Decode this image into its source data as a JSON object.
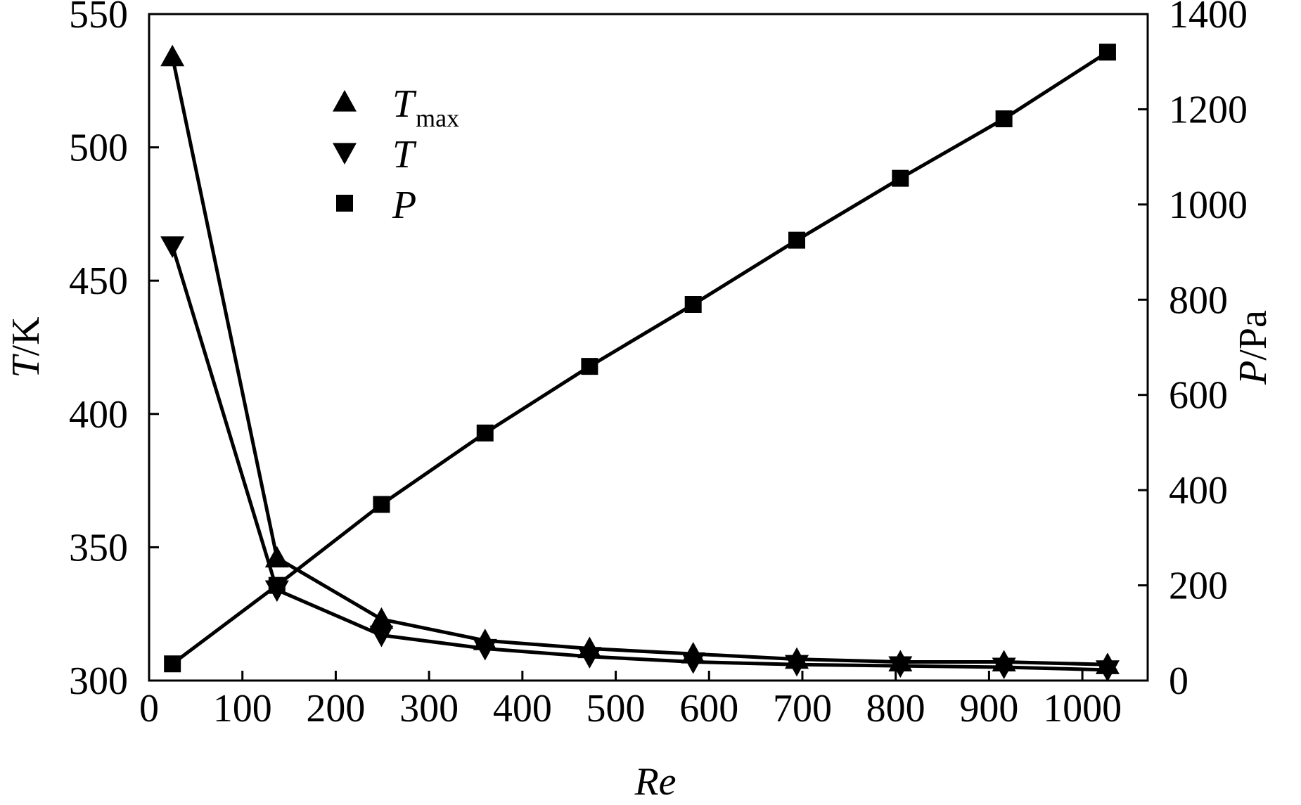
{
  "chart_data": {
    "type": "line",
    "xlabel": "Re",
    "ylabel_left": "T/K",
    "ylabel_left_var": "T",
    "ylabel_left_unit": "/K",
    "ylabel_right": "P/Pa",
    "ylabel_right_var": "P",
    "ylabel_right_unit": "/Pa",
    "xlim": [
      0,
      1070
    ],
    "ylim_left": [
      300,
      550
    ],
    "ylim_right": [
      0,
      1400
    ],
    "x_ticks": [
      0,
      100,
      200,
      300,
      400,
      500,
      600,
      700,
      800,
      900,
      1000
    ],
    "y_left_ticks": [
      300,
      350,
      400,
      450,
      500,
      550
    ],
    "y_right_ticks": [
      0,
      200,
      400,
      600,
      800,
      1000,
      1200,
      1400
    ],
    "grid": false,
    "legend_position": "top-left",
    "x": [
      25,
      137,
      249,
      360,
      472,
      583,
      694,
      805,
      916,
      1027
    ],
    "series": [
      {
        "name": "T",
        "name_subscript": "max",
        "marker": "triangle-up",
        "axis": "left",
        "values": [
          534,
          346,
          323,
          315,
          312,
          310,
          308,
          307,
          307,
          306
        ]
      },
      {
        "name": "T",
        "name_subscript": "",
        "marker": "triangle-down",
        "axis": "left",
        "values": [
          463,
          334,
          317,
          312,
          309,
          307,
          306,
          305.5,
          305,
          304
        ]
      },
      {
        "name": "P",
        "name_subscript": "",
        "marker": "square",
        "axis": "right",
        "values": [
          35,
          200,
          370,
          520,
          660,
          790,
          925,
          1055,
          1180,
          1320
        ]
      }
    ],
    "colors": {
      "line": "#000000",
      "marker": "#000000",
      "background": "#ffffff"
    }
  }
}
